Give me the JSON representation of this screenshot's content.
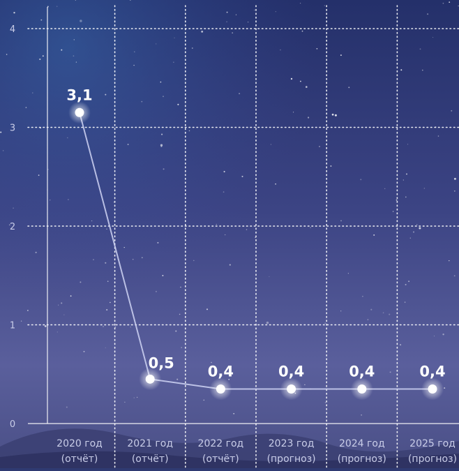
{
  "chart_data": {
    "type": "line",
    "categories": [
      {
        "year": "2020 год",
        "note": "(отчёт)"
      },
      {
        "year": "2021 год",
        "note": "(отчёт)"
      },
      {
        "year": "2022 год",
        "note": "(отчёт)"
      },
      {
        "year": "2023 год",
        "note": "(прогноз)"
      },
      {
        "year": "2024 год",
        "note": "(прогноз)"
      },
      {
        "year": "2025 год",
        "note": "(прогноз)"
      }
    ],
    "values": [
      3.15,
      0.45,
      0.35,
      0.35,
      0.35,
      0.35
    ],
    "value_labels": [
      "3,1",
      "0,5",
      "0,4",
      "0,4",
      "0,4",
      "0,4"
    ],
    "yticks": [
      "0",
      "1",
      "2",
      "3",
      "4"
    ],
    "ylim": [
      0,
      4
    ],
    "grid": true,
    "colors": {
      "line": "#cfd3f3",
      "point": "#ffffff",
      "text": "#ffffff",
      "axis_text": "#c9cde8",
      "grid": "#ffffff"
    }
  }
}
